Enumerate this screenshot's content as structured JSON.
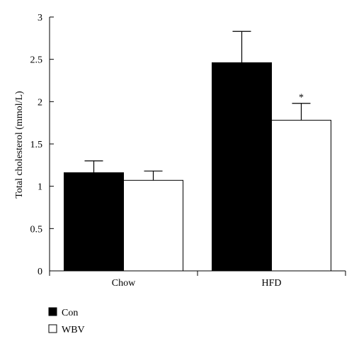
{
  "chart_data": {
    "type": "bar",
    "categories": [
      "Chow",
      "HFD"
    ],
    "ylabel": "Total cholesterol (mmol/L)",
    "xlabel": "",
    "ylim": [
      0,
      3
    ],
    "yticks": [
      "0",
      "0.5",
      "1",
      "1.5",
      "2",
      "2.5",
      "3"
    ],
    "grid": false,
    "legend_position": "bottom-left",
    "series": [
      {
        "name": "Con",
        "values": [
          1.16,
          2.46
        ],
        "errors": [
          0.14,
          0.37
        ],
        "fill": "#000000"
      },
      {
        "name": "WBV",
        "values": [
          1.07,
          1.78
        ],
        "errors": [
          0.11,
          0.2
        ],
        "fill": "#ffffff"
      }
    ],
    "annotations": [
      {
        "category": "HFD",
        "series": "WBV",
        "text": "*"
      }
    ]
  }
}
